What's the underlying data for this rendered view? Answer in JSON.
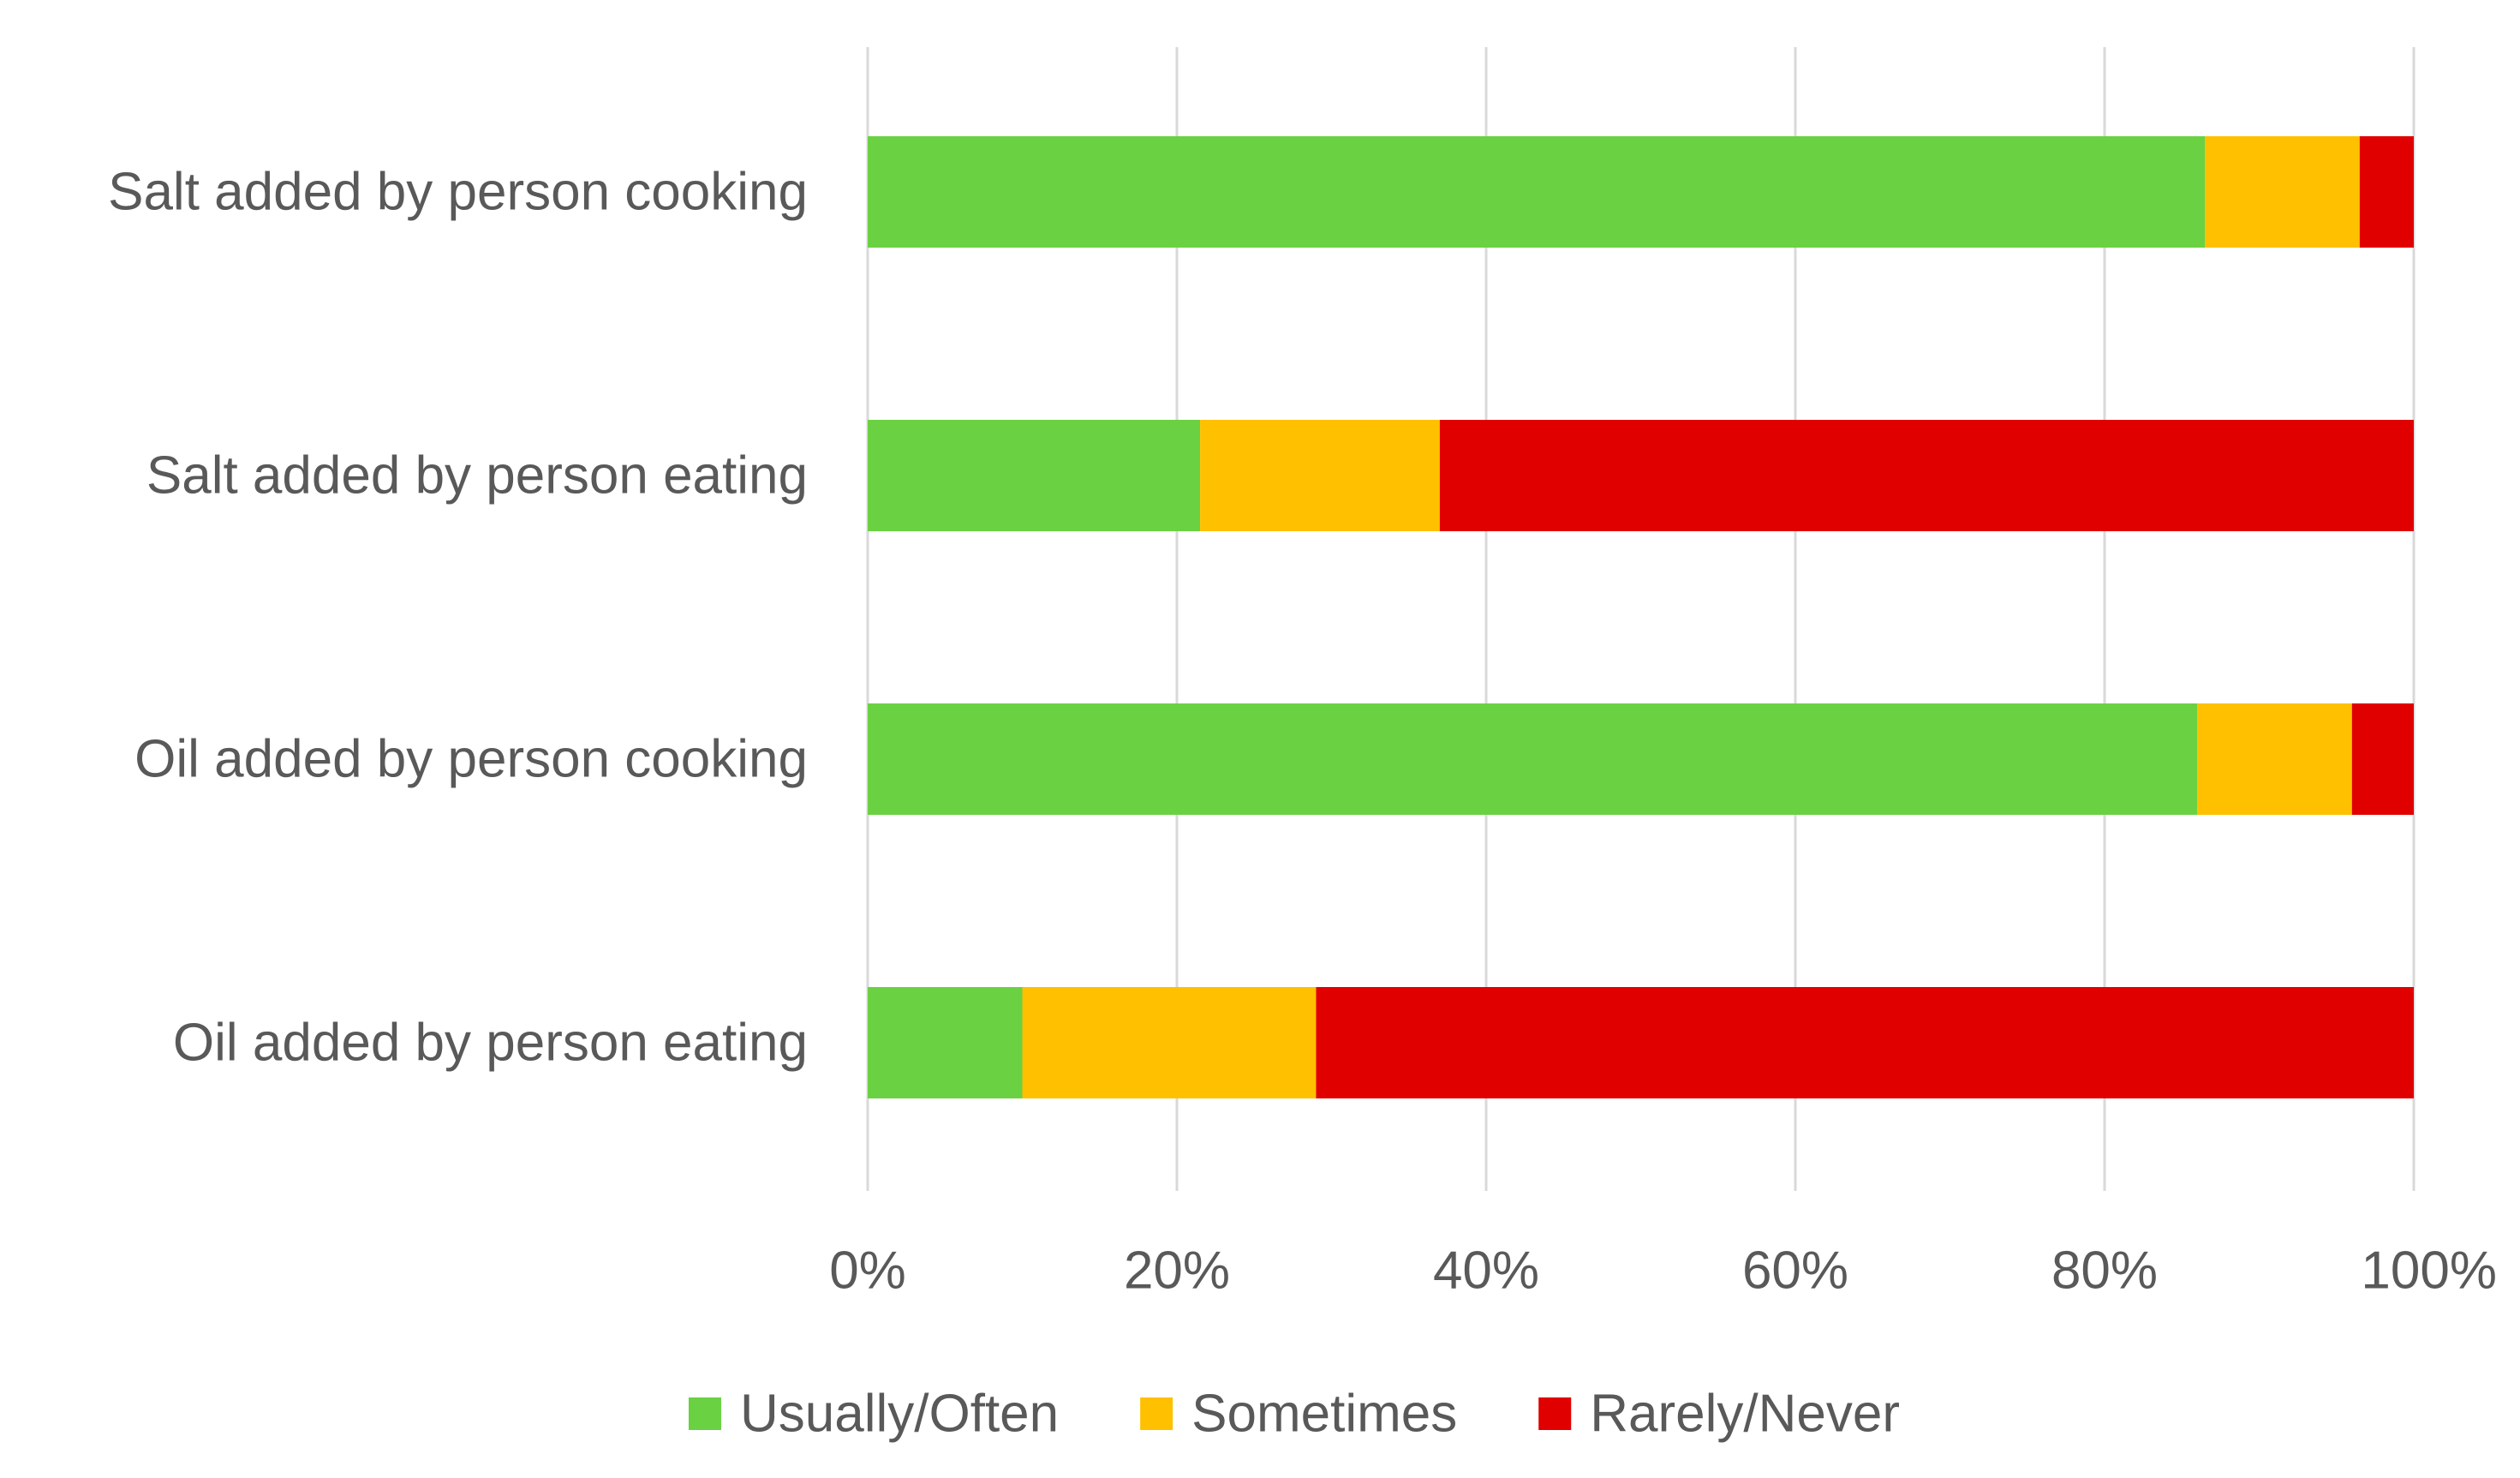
{
  "chart_data": {
    "type": "bar",
    "orientation": "horizontal",
    "stacked": true,
    "title": "",
    "xlabel": "",
    "ylabel": "",
    "categories": [
      "Salt added by person cooking",
      "Salt added by person eating",
      "Oil added by person cooking",
      "Oil added by person eating"
    ],
    "series": [
      {
        "name": "Usually/Often",
        "color": "#6ad142",
        "values": [
          86.5,
          21.5,
          86,
          10
        ]
      },
      {
        "name": "Sometimes",
        "color": "#ffc000",
        "values": [
          10,
          15.5,
          10,
          19
        ]
      },
      {
        "name": "Rarely/Never",
        "color": "#e00000",
        "values": [
          3.5,
          63,
          4,
          71
        ]
      }
    ],
    "xlim": [
      0,
      100
    ],
    "xticks": [
      0,
      20,
      40,
      60,
      80,
      100
    ],
    "xtick_labels": [
      "0%",
      "20%",
      "40%",
      "60%",
      "80%",
      "100%"
    ],
    "grid": "vertical",
    "legend_position": "bottom"
  }
}
